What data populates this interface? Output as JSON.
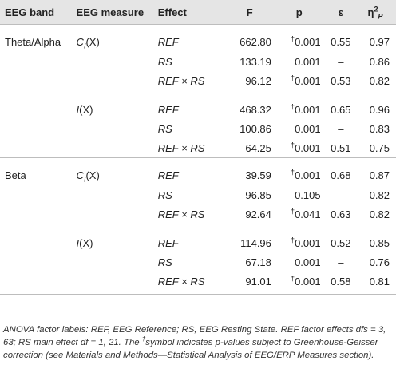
{
  "table": {
    "headers": {
      "band": "EEG band",
      "measure": "EEG measure",
      "effect": "Effect",
      "f": "F",
      "p": "p",
      "epsilon": "ε",
      "eta_base": "η",
      "eta_sup": "2",
      "eta_sub": "P"
    },
    "groups": [
      {
        "band": "Theta/Alpha",
        "measures": [
          {
            "letter": "C",
            "sub": "I",
            "arg": "(X)",
            "rows": [
              {
                "effect": "REF",
                "f": "662.80",
                "dagger": "†",
                "p": "0.001",
                "eps": "0.55",
                "eta": "0.97"
              },
              {
                "effect": "RS",
                "f": "133.19",
                "dagger": "",
                "p": "0.001",
                "eps": "–",
                "eta": "0.86"
              },
              {
                "effect": "REF × RS",
                "f": "96.12",
                "dagger": "†",
                "p": "0.001",
                "eps": "0.53",
                "eta": "0.82"
              }
            ]
          },
          {
            "letter": "I",
            "sub": "",
            "arg": "(X)",
            "rows": [
              {
                "effect": "REF",
                "f": "468.32",
                "dagger": "†",
                "p": "0.001",
                "eps": "0.65",
                "eta": "0.96"
              },
              {
                "effect": "RS",
                "f": "100.86",
                "dagger": "",
                "p": "0.001",
                "eps": "–",
                "eta": "0.83"
              },
              {
                "effect": "REF × RS",
                "f": "64.25",
                "dagger": "†",
                "p": "0.001",
                "eps": "0.51",
                "eta": "0.75"
              }
            ]
          }
        ]
      },
      {
        "band": "Beta",
        "measures": [
          {
            "letter": "C",
            "sub": "I",
            "arg": "(X)",
            "rows": [
              {
                "effect": "REF",
                "f": "39.59",
                "dagger": "†",
                "p": "0.001",
                "eps": "0.68",
                "eta": "0.87"
              },
              {
                "effect": "RS",
                "f": "96.85",
                "dagger": "",
                "p": "0.105",
                "eps": "–",
                "eta": "0.82"
              },
              {
                "effect": "REF × RS",
                "f": "92.64",
                "dagger": "†",
                "p": "0.041",
                "eps": "0.63",
                "eta": "0.82"
              }
            ]
          },
          {
            "letter": "I",
            "sub": "",
            "arg": "(X)",
            "rows": [
              {
                "effect": "REF",
                "f": "114.96",
                "dagger": "†",
                "p": "0.001",
                "eps": "0.52",
                "eta": "0.85"
              },
              {
                "effect": "RS",
                "f": "67.18",
                "dagger": "",
                "p": "0.001",
                "eps": "–",
                "eta": "0.76"
              },
              {
                "effect": "REF × RS",
                "f": "91.01",
                "dagger": "†",
                "p": "0.001",
                "eps": "0.58",
                "eta": "0.81"
              }
            ]
          }
        ]
      }
    ]
  },
  "footnote": {
    "part1": "ANOVA factor labels: REF, EEG Reference; RS, EEG Resting State. REF factor effects dfs = 3, 63; RS main effect df = 1, 21. The ",
    "dagger": "†",
    "part2": "symbol indicates p-values subject to Greenhouse-Geisser correction (see Materials and Methods—Statistical Analysis of EEG/ERP Measures section)."
  }
}
